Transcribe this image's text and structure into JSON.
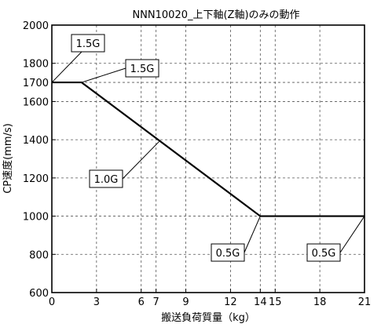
{
  "chart_data": {
    "type": "line",
    "title": "NNN10020_上下軸(Z軸)のみの動作",
    "xlabel": "搬送負荷質量（kg）",
    "ylabel": "CP速度(mm/s)",
    "xlim": [
      0,
      21
    ],
    "ylim": [
      600,
      2000
    ],
    "x_ticks": [
      0,
      3,
      6,
      7,
      9,
      12,
      14,
      15,
      18,
      21
    ],
    "y_ticks": [
      600,
      800,
      1000,
      1200,
      1400,
      1600,
      1700,
      1800,
      2000
    ],
    "grid": true,
    "series": [
      {
        "x": [
          0,
          2,
          14,
          21
        ],
        "y": [
          1700,
          1700,
          1000,
          1000
        ],
        "color": "#000000"
      }
    ],
    "annotations": [
      {
        "id": "a1",
        "text": "1.5G",
        "x": 0,
        "y": 1700
      },
      {
        "id": "a2",
        "text": "1.5G",
        "x": 2,
        "y": 1700
      },
      {
        "id": "a3",
        "text": "1.0G",
        "x": 7.2,
        "y": 1390
      },
      {
        "id": "a4",
        "text": "0.5G",
        "x": 14,
        "y": 1000
      },
      {
        "id": "a5",
        "text": "0.5G",
        "x": 21,
        "y": 1000
      }
    ]
  }
}
